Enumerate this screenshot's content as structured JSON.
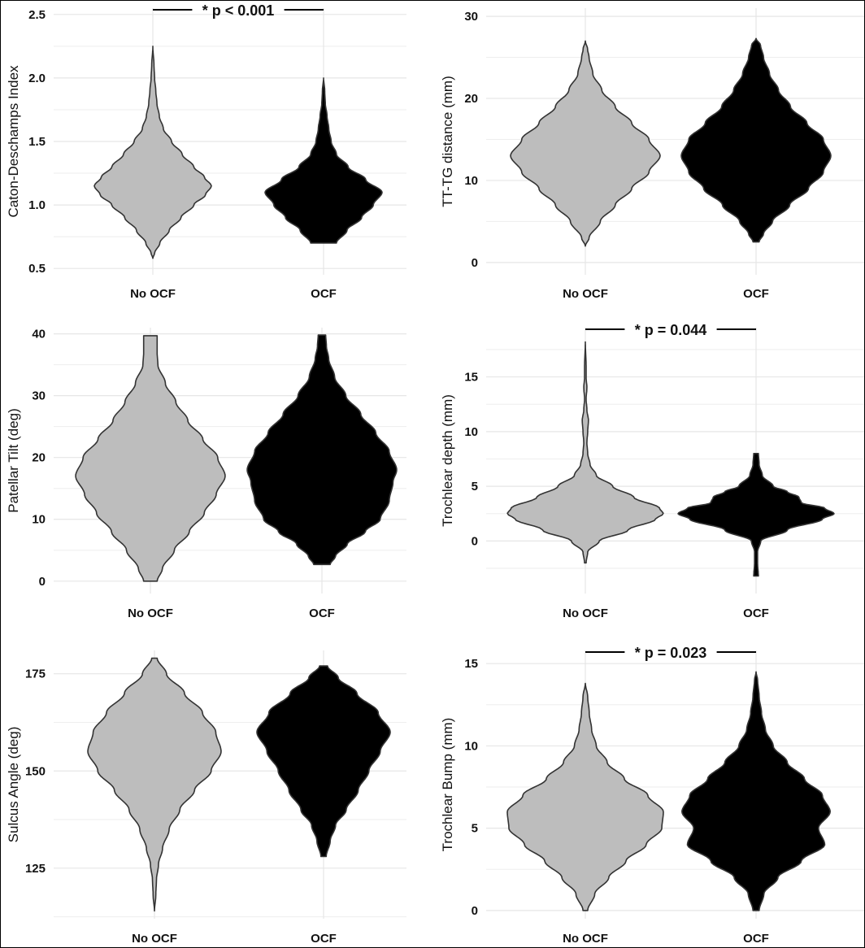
{
  "colors": {
    "no_ocf": "#bdbdbd",
    "ocf": "#000000",
    "outline": "#333333"
  },
  "chart_data": [
    {
      "type": "violin",
      "ylabel": "Caton-Deschamps Index",
      "categories": [
        "No OCF",
        "OCF"
      ],
      "ylim": [
        0.45,
        2.55
      ],
      "yticks": [
        "0.5",
        "1.0",
        "1.5",
        "2.0",
        "2.5"
      ],
      "annotation": "* p < 0.001",
      "series": [
        {
          "category": "No OCF",
          "color": "#bdbdbd",
          "min": 0.58,
          "max": 2.25,
          "profile": [
            [
              0.58,
              0.0
            ],
            [
              0.62,
              0.03
            ],
            [
              0.7,
              0.12
            ],
            [
              0.8,
              0.28
            ],
            [
              0.9,
              0.48
            ],
            [
              1.0,
              0.7
            ],
            [
              1.08,
              0.9
            ],
            [
              1.15,
              1.0
            ],
            [
              1.22,
              0.88
            ],
            [
              1.3,
              0.7
            ],
            [
              1.4,
              0.5
            ],
            [
              1.5,
              0.32
            ],
            [
              1.6,
              0.18
            ],
            [
              1.7,
              0.11
            ],
            [
              1.8,
              0.07
            ],
            [
              1.9,
              0.05
            ],
            [
              2.0,
              0.03
            ],
            [
              2.1,
              0.02
            ],
            [
              2.25,
              0.0
            ]
          ]
        },
        {
          "category": "OCF",
          "color": "#000000",
          "min": 0.7,
          "max": 2.0,
          "profile": [
            [
              0.7,
              0.22
            ],
            [
              0.8,
              0.4
            ],
            [
              0.9,
              0.65
            ],
            [
              1.0,
              0.85
            ],
            [
              1.1,
              1.0
            ],
            [
              1.2,
              0.72
            ],
            [
              1.3,
              0.42
            ],
            [
              1.4,
              0.22
            ],
            [
              1.5,
              0.13
            ],
            [
              1.6,
              0.09
            ],
            [
              1.7,
              0.06
            ],
            [
              1.8,
              0.03
            ],
            [
              1.9,
              0.02
            ],
            [
              2.0,
              0.0
            ]
          ]
        }
      ]
    },
    {
      "type": "violin",
      "ylabel": "TT-TG distance (mm)",
      "categories": [
        "No OCF",
        "OCF"
      ],
      "ylim": [
        -1.5,
        31
      ],
      "yticks": [
        "0",
        "10",
        "20",
        "30"
      ],
      "series": [
        {
          "category": "No OCF",
          "color": "#bdbdbd",
          "min": 2.0,
          "max": 27.0,
          "profile": [
            [
              2.0,
              0.0
            ],
            [
              3.0,
              0.05
            ],
            [
              5.0,
              0.2
            ],
            [
              7.0,
              0.4
            ],
            [
              9.0,
              0.62
            ],
            [
              11.0,
              0.85
            ],
            [
              13.0,
              1.0
            ],
            [
              15.0,
              0.85
            ],
            [
              17.0,
              0.62
            ],
            [
              19.0,
              0.4
            ],
            [
              21.0,
              0.22
            ],
            [
              23.0,
              0.1
            ],
            [
              25.0,
              0.05
            ],
            [
              26.0,
              0.03
            ],
            [
              27.0,
              0.0
            ]
          ]
        },
        {
          "category": "OCF",
          "color": "#000000",
          "min": 2.5,
          "max": 27.3,
          "profile": [
            [
              2.5,
              0.04
            ],
            [
              3.5,
              0.1
            ],
            [
              5.0,
              0.22
            ],
            [
              7.0,
              0.45
            ],
            [
              9.0,
              0.7
            ],
            [
              11.0,
              0.9
            ],
            [
              13.0,
              1.0
            ],
            [
              15.0,
              0.9
            ],
            [
              17.0,
              0.68
            ],
            [
              19.0,
              0.46
            ],
            [
              21.0,
              0.3
            ],
            [
              23.0,
              0.18
            ],
            [
              25.0,
              0.1
            ],
            [
              26.5,
              0.06
            ],
            [
              27.3,
              0.0
            ]
          ]
        }
      ]
    },
    {
      "type": "violin",
      "ylabel": "Patellar Tilt (deg)",
      "categories": [
        "No OCF",
        "OCF"
      ],
      "ylim": [
        -2,
        41
      ],
      "yticks": [
        "0",
        "10",
        "20",
        "30",
        "40"
      ],
      "series": [
        {
          "category": "No OCF",
          "color": "#bdbdbd",
          "min": 0,
          "max": 39.7,
          "profile": [
            [
              0,
              0.09
            ],
            [
              2,
              0.16
            ],
            [
              5,
              0.32
            ],
            [
              8,
              0.52
            ],
            [
              11,
              0.72
            ],
            [
              14,
              0.88
            ],
            [
              17,
              1.0
            ],
            [
              20,
              0.9
            ],
            [
              23,
              0.7
            ],
            [
              26,
              0.5
            ],
            [
              29,
              0.34
            ],
            [
              32,
              0.2
            ],
            [
              35,
              0.1
            ],
            [
              37,
              0.09
            ],
            [
              39.7,
              0.09
            ]
          ]
        },
        {
          "category": "OCF",
          "color": "#000000",
          "min": 2.7,
          "max": 39.8,
          "profile": [
            [
              2.7,
              0.11
            ],
            [
              4,
              0.18
            ],
            [
              6,
              0.34
            ],
            [
              8,
              0.58
            ],
            [
              10,
              0.78
            ],
            [
              13,
              0.9
            ],
            [
              16,
              0.95
            ],
            [
              18,
              1.0
            ],
            [
              21,
              0.9
            ],
            [
              24,
              0.72
            ],
            [
              27,
              0.52
            ],
            [
              30,
              0.32
            ],
            [
              33,
              0.17
            ],
            [
              36,
              0.09
            ],
            [
              38,
              0.06
            ],
            [
              39.8,
              0.05
            ]
          ]
        }
      ]
    },
    {
      "type": "violin",
      "ylabel": "Trochlear depth (mm)",
      "categories": [
        "No OCF",
        "OCF"
      ],
      "ylim": [
        -4.8,
        19.5
      ],
      "yticks": [
        "0",
        "5",
        "10",
        "15"
      ],
      "annotation": "* p = 0.044",
      "series": [
        {
          "category": "No OCF",
          "color": "#bdbdbd",
          "min": -2.0,
          "max": 18.2,
          "profile": [
            [
              -2.0,
              0.01
            ],
            [
              -1.0,
              0.03
            ],
            [
              0.0,
              0.18
            ],
            [
              1.0,
              0.55
            ],
            [
              2.0,
              0.9
            ],
            [
              2.5,
              1.0
            ],
            [
              3.0,
              0.95
            ],
            [
              4.0,
              0.62
            ],
            [
              5.0,
              0.35
            ],
            [
              6.0,
              0.14
            ],
            [
              7.0,
              0.06
            ],
            [
              8.0,
              0.03
            ],
            [
              9.0,
              0.02
            ],
            [
              10.0,
              0.03
            ],
            [
              11.0,
              0.04
            ],
            [
              12.0,
              0.02
            ],
            [
              13.0,
              0.01
            ],
            [
              14.0,
              0.02
            ],
            [
              15.0,
              0.01
            ],
            [
              16.0,
              0.01
            ],
            [
              18.2,
              0.0
            ]
          ]
        },
        {
          "category": "OCF",
          "color": "#000000",
          "min": -3.2,
          "max": 8.0,
          "profile": [
            [
              -3.2,
              0.03
            ],
            [
              -2.0,
              0.02
            ],
            [
              -1.0,
              0.02
            ],
            [
              0.0,
              0.06
            ],
            [
              1.0,
              0.4
            ],
            [
              2.0,
              0.85
            ],
            [
              2.5,
              1.0
            ],
            [
              3.0,
              0.88
            ],
            [
              3.5,
              0.58
            ],
            [
              4.0,
              0.55
            ],
            [
              4.5,
              0.4
            ],
            [
              5.0,
              0.22
            ],
            [
              6.0,
              0.08
            ],
            [
              7.0,
              0.04
            ],
            [
              8.0,
              0.03
            ]
          ]
        }
      ]
    },
    {
      "type": "violin",
      "ylabel": "Sulcus Angle (deg)",
      "categories": [
        "No OCF",
        "OCF"
      ],
      "ylim": [
        112,
        181
      ],
      "yticks": [
        "125",
        "150",
        "175"
      ],
      "series": [
        {
          "category": "No OCF",
          "color": "#bdbdbd",
          "min": 114,
          "max": 179,
          "profile": [
            [
              114,
              0.0
            ],
            [
              118,
              0.02
            ],
            [
              122,
              0.03
            ],
            [
              126,
              0.06
            ],
            [
              130,
              0.12
            ],
            [
              135,
              0.22
            ],
            [
              140,
              0.38
            ],
            [
              145,
              0.6
            ],
            [
              150,
              0.85
            ],
            [
              155,
              1.0
            ],
            [
              160,
              0.92
            ],
            [
              165,
              0.72
            ],
            [
              170,
              0.45
            ],
            [
              175,
              0.18
            ],
            [
              179,
              0.04
            ]
          ]
        },
        {
          "category": "OCF",
          "color": "#000000",
          "min": 128,
          "max": 177,
          "profile": [
            [
              128,
              0.04
            ],
            [
              132,
              0.1
            ],
            [
              136,
              0.18
            ],
            [
              140,
              0.34
            ],
            [
              145,
              0.52
            ],
            [
              150,
              0.68
            ],
            [
              155,
              0.85
            ],
            [
              160,
              1.0
            ],
            [
              165,
              0.82
            ],
            [
              170,
              0.5
            ],
            [
              174,
              0.22
            ],
            [
              177,
              0.06
            ]
          ]
        }
      ]
    },
    {
      "type": "violin",
      "ylabel": "Trochlear Bump (mm)",
      "categories": [
        "No OCF",
        "OCF"
      ],
      "ylim": [
        -0.5,
        15.8
      ],
      "yticks": [
        "0",
        "5",
        "10",
        "15"
      ],
      "annotation": "* p = 0.023",
      "series": [
        {
          "category": "No OCF",
          "color": "#bdbdbd",
          "min": 0.0,
          "max": 13.8,
          "profile": [
            [
              0.0,
              0.03
            ],
            [
              1.0,
              0.12
            ],
            [
              2.0,
              0.3
            ],
            [
              3.0,
              0.52
            ],
            [
              4.0,
              0.78
            ],
            [
              5.0,
              0.98
            ],
            [
              6.0,
              1.0
            ],
            [
              7.0,
              0.8
            ],
            [
              8.0,
              0.5
            ],
            [
              9.0,
              0.28
            ],
            [
              10.0,
              0.14
            ],
            [
              11.0,
              0.08
            ],
            [
              12.0,
              0.05
            ],
            [
              13.0,
              0.03
            ],
            [
              13.8,
              0.0
            ]
          ]
        },
        {
          "category": "OCF",
          "color": "#000000",
          "min": 0.0,
          "max": 14.5,
          "profile": [
            [
              0.0,
              0.04
            ],
            [
              1.0,
              0.1
            ],
            [
              2.0,
              0.28
            ],
            [
              3.0,
              0.58
            ],
            [
              4.0,
              0.88
            ],
            [
              5.0,
              0.8
            ],
            [
              6.0,
              0.95
            ],
            [
              7.0,
              0.85
            ],
            [
              8.0,
              0.62
            ],
            [
              9.0,
              0.4
            ],
            [
              10.0,
              0.22
            ],
            [
              11.0,
              0.12
            ],
            [
              12.0,
              0.07
            ],
            [
              13.0,
              0.04
            ],
            [
              14.0,
              0.02
            ],
            [
              14.5,
              0.0
            ]
          ]
        }
      ]
    }
  ]
}
